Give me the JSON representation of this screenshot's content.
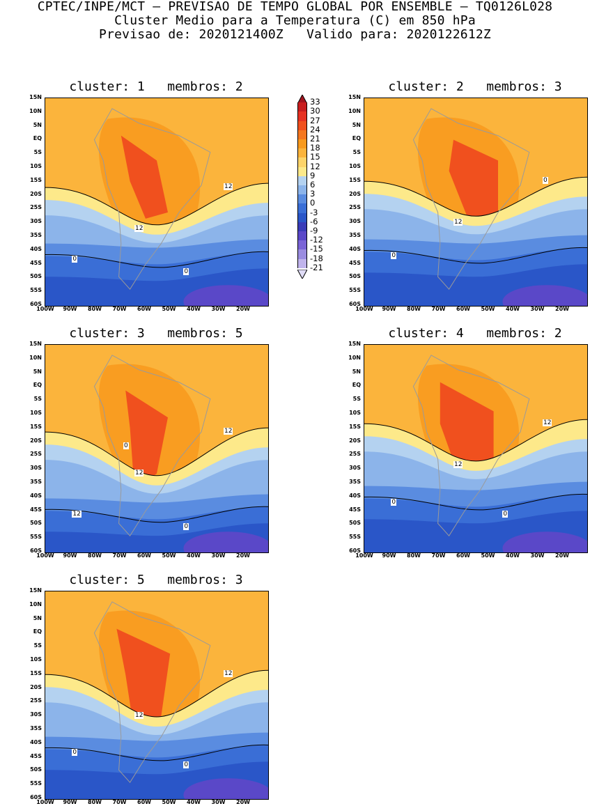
{
  "header": {
    "line1": "CPTEC/INPE/MCT – PREVISAO DE TEMPO GLOBAL POR ENSEMBLE – TQ0126L028",
    "line2": "Cluster Medio para a Temperatura (C) em 850 hPa",
    "line3": "Previsao de: 2020121400Z   Valido para: 2020122612Z"
  },
  "axes": {
    "lat_labels": [
      "15N",
      "10N",
      "5N",
      "EQ",
      "5S",
      "10S",
      "15S",
      "20S",
      "25S",
      "30S",
      "35S",
      "40S",
      "45S",
      "50S",
      "55S",
      "60S"
    ],
    "lon_labels": [
      "100W",
      "90W",
      "80W",
      "70W",
      "60W",
      "50W",
      "40W",
      "30W",
      "20W"
    ]
  },
  "colorbar": {
    "labels": [
      "33",
      "30",
      "27",
      "24",
      "21",
      "18",
      "15",
      "12",
      "9",
      "6",
      "3",
      "0",
      "-3",
      "-6",
      "-9",
      "-12",
      "-15",
      "-18",
      "-21"
    ],
    "colors": [
      "#a0141e",
      "#c81e1e",
      "#e63222",
      "#f0501e",
      "#f57820",
      "#f89a1e",
      "#fbb43c",
      "#fdd46a",
      "#fde98a",
      "#b4d2f0",
      "#8cb4ea",
      "#5a8ce0",
      "#3a6ed6",
      "#2a56c8",
      "#3a3cb8",
      "#5a48c8",
      "#7a64d6",
      "#9a8ce0",
      "#c0b4ec",
      "#e0dcf6"
    ]
  },
  "panels": [
    {
      "title": "cluster: 1   membros: 2",
      "labels": [
        "12",
        "12",
        "0",
        "0"
      ]
    },
    {
      "title": "cluster: 2   membros: 3",
      "labels": [
        "12",
        "0",
        "0"
      ]
    },
    {
      "title": "cluster: 3   membros: 5",
      "labels": [
        "12",
        "12",
        "12",
        "0",
        "0"
      ]
    },
    {
      "title": "cluster: 4   membros: 2",
      "labels": [
        "12",
        "12",
        "0",
        "0"
      ]
    },
    {
      "title": "cluster: 5   membros: 3",
      "labels": [
        "12",
        "12",
        "0",
        "0"
      ]
    }
  ]
}
